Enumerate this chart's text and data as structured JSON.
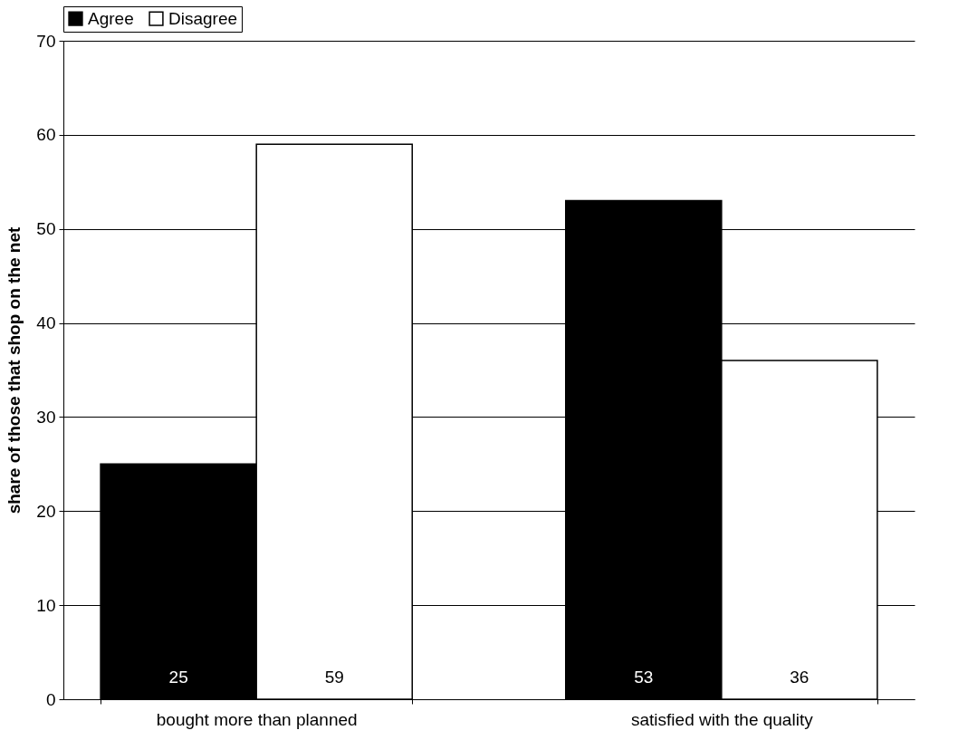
{
  "chart_data": {
    "type": "bar",
    "categories": [
      "bought more than planned",
      "satisfied with the quality"
    ],
    "series": [
      {
        "name": "Agree",
        "color": "#000000",
        "values": [
          25,
          53
        ]
      },
      {
        "name": "Disagree",
        "color": "#ffffff",
        "values": [
          59,
          36
        ]
      }
    ],
    "ylabel": "share of those that shop on the net",
    "ylim": [
      0,
      70
    ],
    "yticks": [
      0,
      10,
      20,
      30,
      40,
      50,
      60,
      70
    ],
    "grid": "y",
    "legend": "top",
    "data_labels": true
  }
}
